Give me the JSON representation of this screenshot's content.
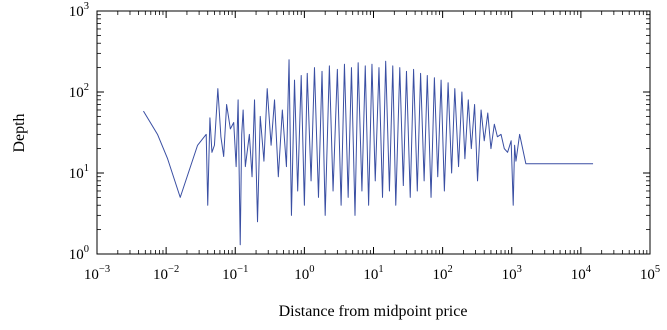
{
  "chart_data": {
    "type": "line",
    "xscale": "log",
    "yscale": "log",
    "xlim": [
      0.001,
      100000
    ],
    "ylim": [
      1,
      1000
    ],
    "grid": false,
    "legend": "none",
    "xlabel": "Distance from midpoint price",
    "ylabel": "Depth",
    "x_ticks": [
      {
        "base": "10",
        "exp": "−3",
        "value": 0.001
      },
      {
        "base": "10",
        "exp": "−2",
        "value": 0.01
      },
      {
        "base": "10",
        "exp": "−1",
        "value": 0.1
      },
      {
        "base": "10",
        "exp": "0",
        "value": 1
      },
      {
        "base": "10",
        "exp": "1",
        "value": 10
      },
      {
        "base": "10",
        "exp": "2",
        "value": 100
      },
      {
        "base": "10",
        "exp": "3",
        "value": 1000
      },
      {
        "base": "10",
        "exp": "4",
        "value": 10000
      },
      {
        "base": "10",
        "exp": "5",
        "value": 100000
      }
    ],
    "y_ticks": [
      {
        "base": "10",
        "exp": "0",
        "value": 1
      },
      {
        "base": "10",
        "exp": "1",
        "value": 10
      },
      {
        "base": "10",
        "exp": "2",
        "value": 100
      },
      {
        "base": "10",
        "exp": "3",
        "value": 1000
      }
    ],
    "line_color": "#3a4fa3",
    "series": [
      {
        "x": [
          0.0047,
          0.0075,
          0.0105,
          0.016,
          0.0285,
          0.038,
          0.04,
          0.043,
          0.046,
          0.05,
          0.056,
          0.062,
          0.068,
          0.075,
          0.085,
          0.095,
          0.103,
          0.11,
          0.118,
          0.124,
          0.13,
          0.14,
          0.16,
          0.175,
          0.19,
          0.21,
          0.23,
          0.26,
          0.29,
          0.33,
          0.37,
          0.42,
          0.48,
          0.55,
          0.6,
          0.65,
          0.72,
          0.8,
          0.9,
          1.0,
          1.1,
          1.25,
          1.4,
          1.6,
          1.8,
          2.0,
          2.3,
          2.6,
          3.0,
          3.4,
          3.8,
          4.3,
          4.8,
          5.4,
          6.0,
          6.8,
          7.6,
          8.5,
          9.5,
          10.6,
          12,
          13.5,
          15,
          17,
          19,
          21,
          24,
          27,
          30,
          34,
          38,
          43,
          48,
          54,
          60,
          68,
          76,
          85,
          95,
          106,
          120,
          135,
          150,
          170,
          190,
          210,
          235,
          260,
          290,
          320,
          360,
          400,
          450,
          500,
          560,
          620,
          700,
          780,
          870,
          980,
          1050,
          1100,
          1150,
          1300,
          1600,
          1900,
          2000,
          15000
        ],
        "y": [
          58,
          30,
          15,
          5,
          22,
          30,
          4,
          48,
          18,
          22,
          110,
          28,
          16,
          70,
          35,
          42,
          12,
          80,
          1.3,
          30,
          60,
          12,
          30,
          9,
          80,
          2.5,
          50,
          14,
          110,
          22,
          80,
          9,
          60,
          12,
          250,
          3,
          140,
          6,
          160,
          4,
          170,
          8,
          200,
          5,
          180,
          3,
          210,
          6,
          190,
          4,
          220,
          5,
          200,
          3,
          230,
          6,
          210,
          4,
          220,
          8,
          200,
          5,
          240,
          6,
          210,
          4,
          200,
          7,
          180,
          5,
          190,
          6,
          170,
          8,
          160,
          5,
          150,
          9,
          140,
          6,
          130,
          10,
          110,
          12,
          100,
          15,
          80,
          20,
          70,
          8,
          60,
          25,
          55,
          20,
          40,
          28,
          30,
          20,
          18,
          25,
          4,
          22,
          14,
          30,
          13,
          13,
          13,
          13
        ]
      }
    ]
  }
}
